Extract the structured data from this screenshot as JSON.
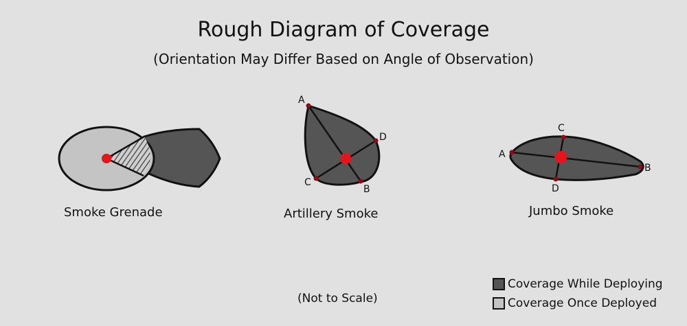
{
  "title": "Rough Diagram of Coverage",
  "subtitle": "(Orientation May Differ Based on Angle of Observation)",
  "colors": {
    "background": "#e1e1e1",
    "deploying": "#555555",
    "deployed": "#c4c4c4",
    "outline": "#111111",
    "center_point": "#e8141b",
    "marker_point": "#8b0a14"
  },
  "diagrams": {
    "smoke_grenade": {
      "caption": "Smoke Grenade"
    },
    "artillery_smoke": {
      "caption": "Artillery Smoke",
      "points": {
        "a": "A",
        "b": "B",
        "c": "C",
        "d": "D"
      }
    },
    "jumbo_smoke": {
      "caption": "Jumbo Smoke",
      "points": {
        "a": "A",
        "b": "B",
        "c": "C",
        "d": "D"
      }
    }
  },
  "note": "(Not to Scale)",
  "legend": {
    "deploying_label": "Coverage While Deploying",
    "deployed_label": "Coverage Once Deployed"
  }
}
